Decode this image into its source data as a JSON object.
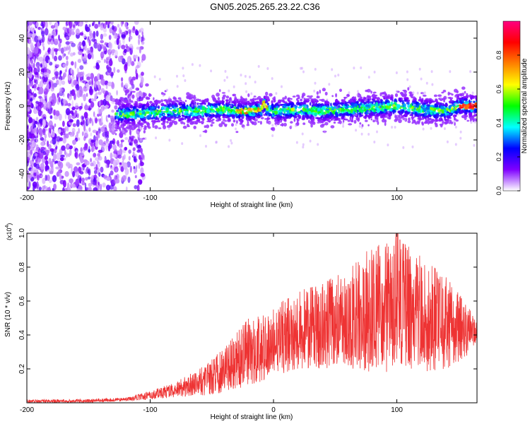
{
  "title": "GN05.2025.265.23.22.C36",
  "chart_data": [
    {
      "type": "heatmap",
      "title": "GN05.2025.265.23.22.C36",
      "xlabel": "Height of straight line (km)",
      "ylabel": "Frequency (Hz)",
      "xlim": [
        -200,
        165
      ],
      "ylim": [
        -50,
        50
      ],
      "xticks": [
        -200,
        -100,
        0,
        100
      ],
      "yticks": [
        -40,
        -20,
        0,
        20,
        40
      ],
      "ridge": {
        "x": [
          -125,
          -100,
          -80,
          -60,
          -40,
          -30,
          -20,
          -10,
          -8,
          -5,
          0,
          20,
          40,
          60,
          80,
          100,
          120,
          140,
          150,
          160
        ],
        "y": [
          -5,
          -4,
          -3,
          -3,
          -2,
          -3,
          -3,
          -2,
          2,
          -2,
          -3,
          -2,
          -3,
          -2,
          -1,
          0,
          -2,
          -3,
          0,
          0
        ]
      },
      "colorbar": {
        "label": "Normalized spectral amplitude",
        "range": [
          0,
          1
        ],
        "ticks": [
          0.0,
          0.2,
          0.4,
          0.6,
          0.8
        ],
        "tick_labels": [
          "0.0",
          "0.2",
          "0.4",
          "0.6",
          "0.8"
        ],
        "colormap": [
          "#ffffff",
          "#7f00ff",
          "#0000ff",
          "#00ffff",
          "#00ff00",
          "#ffff00",
          "#ff8000",
          "#ff0000",
          "#ff0080"
        ]
      }
    },
    {
      "type": "line",
      "xlabel": "Height of straight line (km)",
      "ylabel": "SNR (10 * v/v)",
      "scale_label": "(x10^4)",
      "scale_text": "(x10",
      "scale_exp": "4",
      "xlim": [
        -200,
        165
      ],
      "ylim": [
        0,
        1.0
      ],
      "xticks": [
        -200,
        -100,
        0,
        100
      ],
      "yticks": [
        0.2,
        0.4,
        0.6,
        0.8,
        1.0
      ],
      "ytick_labels": [
        "0.2",
        "0.4",
        "0.6",
        "0.8",
        "1.0"
      ],
      "series": [
        {
          "name": "SNR",
          "color": "#ee3333",
          "envelope_x": [
            -200,
            -160,
            -120,
            -100,
            -80,
            -60,
            -40,
            -20,
            0,
            10,
            20,
            40,
            60,
            80,
            100,
            120,
            140,
            155,
            165
          ],
          "envelope_max": [
            0.02,
            0.02,
            0.03,
            0.07,
            0.12,
            0.2,
            0.32,
            0.5,
            0.55,
            0.62,
            0.66,
            0.7,
            0.8,
            0.92,
            0.98,
            0.86,
            0.74,
            0.6,
            0.48
          ],
          "envelope_min": [
            0.0,
            0.0,
            0.01,
            0.02,
            0.03,
            0.04,
            0.06,
            0.1,
            0.15,
            0.18,
            0.2,
            0.2,
            0.2,
            0.18,
            0.18,
            0.18,
            0.2,
            0.26,
            0.36
          ]
        }
      ]
    }
  ]
}
